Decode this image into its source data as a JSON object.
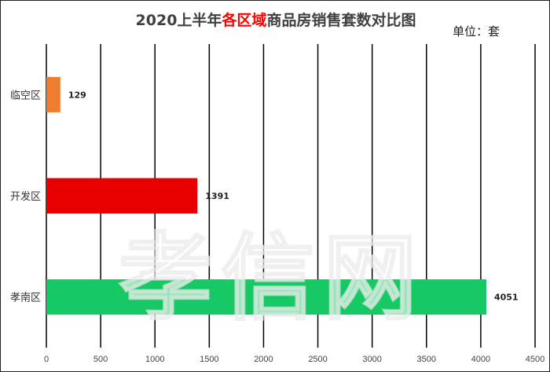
{
  "chart_data": {
    "type": "bar",
    "orientation": "horizontal",
    "title_parts": [
      {
        "text": "2020上半年",
        "color": "#404040"
      },
      {
        "text": "各区域",
        "color": "#ff0000"
      },
      {
        "text": "商品房销售套数对比图",
        "color": "#404040"
      }
    ],
    "unit_label": "单位：套",
    "categories": [
      "临空区",
      "开发区",
      "孝南区"
    ],
    "values": [
      129,
      1391,
      4051
    ],
    "data_labels": [
      "129",
      "1391",
      "4051"
    ],
    "colors": [
      "#ed7d31",
      "#e60000",
      "#17c964"
    ],
    "xlim": [
      0,
      4500
    ],
    "x_ticks": [
      "0",
      "500",
      "1000",
      "1500",
      "2000",
      "2500",
      "3000",
      "3500",
      "4000",
      "4500"
    ],
    "grid": "vertical",
    "legend": "none",
    "watermark": "孝信网"
  }
}
